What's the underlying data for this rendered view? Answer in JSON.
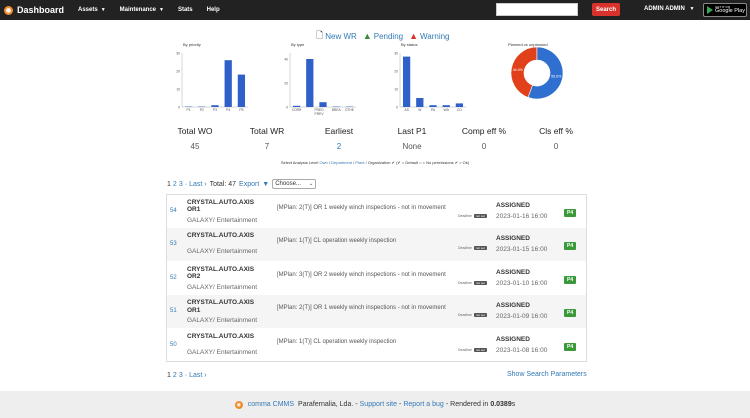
{
  "nav": {
    "brand": "Dashboard",
    "items": [
      {
        "label": "Assets",
        "dropdown": true
      },
      {
        "label": "Maintenance",
        "dropdown": true
      },
      {
        "label": "Stats",
        "dropdown": false
      },
      {
        "label": "Help",
        "dropdown": false
      }
    ],
    "search_value": "",
    "search_button": "Search",
    "user": "ADMIN ADMIN",
    "gplay_small": "GET IT ON",
    "gplay_big": "Google Play"
  },
  "actions": {
    "new_wr": "New WR",
    "pending": "Pending",
    "warning": "Warning"
  },
  "chart_data": [
    {
      "type": "bar",
      "title": "By priority",
      "categories": [
        "P1",
        "P2",
        "P3",
        "P4",
        "P5"
      ],
      "values": [
        0,
        0,
        1,
        26,
        18
      ],
      "ylim": [
        0,
        30
      ],
      "yticks": [
        0,
        10,
        20,
        30
      ],
      "color": "#2f5fc8"
    },
    {
      "type": "bar",
      "title": "By type",
      "categories": [
        "CORR",
        "PREV",
        "PRED",
        "BREA",
        "OTHE"
      ],
      "tick_labels": [
        "CORR",
        "PRED\nPREV",
        "BREA",
        "OTHE"
      ],
      "values": [
        1,
        40,
        4,
        0,
        0
      ],
      "ylim": [
        0,
        45
      ],
      "yticks": [
        0,
        20,
        40
      ],
      "color": "#2f5fc8"
    },
    {
      "type": "bar",
      "title": "By status",
      "categories": [
        "AS",
        "W",
        "PA",
        "WA",
        "CO"
      ],
      "values": [
        28,
        5,
        1,
        1,
        2
      ],
      "ylim": [
        0,
        30
      ],
      "yticks": [
        0,
        10,
        20,
        30
      ],
      "color": "#2f5fc8"
    },
    {
      "type": "pie",
      "title": "Planned vs unplanned",
      "labels": [
        "44.4%",
        "55.6%"
      ],
      "values": [
        44.4,
        55.6
      ],
      "colors": [
        "#e0401a",
        "#2f6fd0"
      ]
    }
  ],
  "kpis": [
    {
      "label": "Total WO",
      "value": "45"
    },
    {
      "label": "Total WR",
      "value": "7"
    },
    {
      "label": "Earliest",
      "value": "2"
    },
    {
      "label": "Last P1",
      "value": "None"
    },
    {
      "label": "Comp eff %",
      "value": "0"
    },
    {
      "label": "Cls eff %",
      "value": "0"
    }
  ],
  "analysis": {
    "prefix": "Select Analysis Level",
    "own": "Own",
    "department": "Department",
    "plant": "Plant",
    "legend": "Organization ✔ (✔ = Default ○ = No permissions ✔ = Ok)"
  },
  "pager_top": {
    "pages": [
      "1",
      "2",
      "3"
    ],
    "last": "Last ›",
    "total": "Total: 47",
    "export": "Export",
    "choose": "Choose..."
  },
  "pager_bottom": {
    "pages": [
      "1",
      "2",
      "3"
    ],
    "last": "Last ›",
    "show_params": "Show Search Parameters"
  },
  "rows": [
    {
      "id": "54",
      "title": "CRYSTAL.AUTO.AXIS OR1",
      "sub": "GALAXY/ Entertainment",
      "desc": "[MPlan: 2(T)] OR 1 weekly winch inspections - not in movement",
      "deadline_label": "Deadline",
      "deadline_badge": "not set",
      "status": "ASSIGNED",
      "date": "2023-01-16 16:00",
      "priority": "P4"
    },
    {
      "id": "53",
      "title": "CRYSTAL.AUTO.AXIS",
      "sub": "GALAXY/ Entertainment",
      "desc": "[MPlan: 1(T)] CL operation weekly inspection",
      "deadline_label": "Deadline",
      "deadline_badge": "not set",
      "status": "ASSIGNED",
      "date": "2023-01-15 16:00",
      "priority": "P4"
    },
    {
      "id": "52",
      "title": "CRYSTAL.AUTO.AXIS OR2",
      "sub": "GALAXY/ Entertainment",
      "desc": "[MPlan: 3(T)] OR 2 weekly winch inspections - not in movement",
      "deadline_label": "Deadline",
      "deadline_badge": "not set",
      "status": "ASSIGNED",
      "date": "2023-01-10 16:00",
      "priority": "P4"
    },
    {
      "id": "51",
      "title": "CRYSTAL.AUTO.AXIS OR1",
      "sub": "GALAXY/ Entertainment",
      "desc": "[MPlan: 2(T)] OR 1 weekly winch inspections - not in movement",
      "deadline_label": "Deadline",
      "deadline_badge": "not set",
      "status": "ASSIGNED",
      "date": "2023-01-09 16:00",
      "priority": "P4"
    },
    {
      "id": "50",
      "title": "CRYSTAL.AUTO.AXIS",
      "sub": "GALAXY/ Entertainment",
      "desc": "[MPlan: 1(T)] CL operation weekly inspection",
      "deadline_label": "Deadline",
      "deadline_badge": "not set",
      "status": "ASSIGNED",
      "date": "2023-01-08 16:00",
      "priority": "P4"
    }
  ],
  "footer": {
    "brand": "comma CMMS",
    "company": "Parafernalia, Lda.",
    "support": "Support site",
    "bug": "Report a bug",
    "rendered_prefix": "Rendered in",
    "rendered_time": "0.0389",
    "rendered_unit": "s"
  }
}
